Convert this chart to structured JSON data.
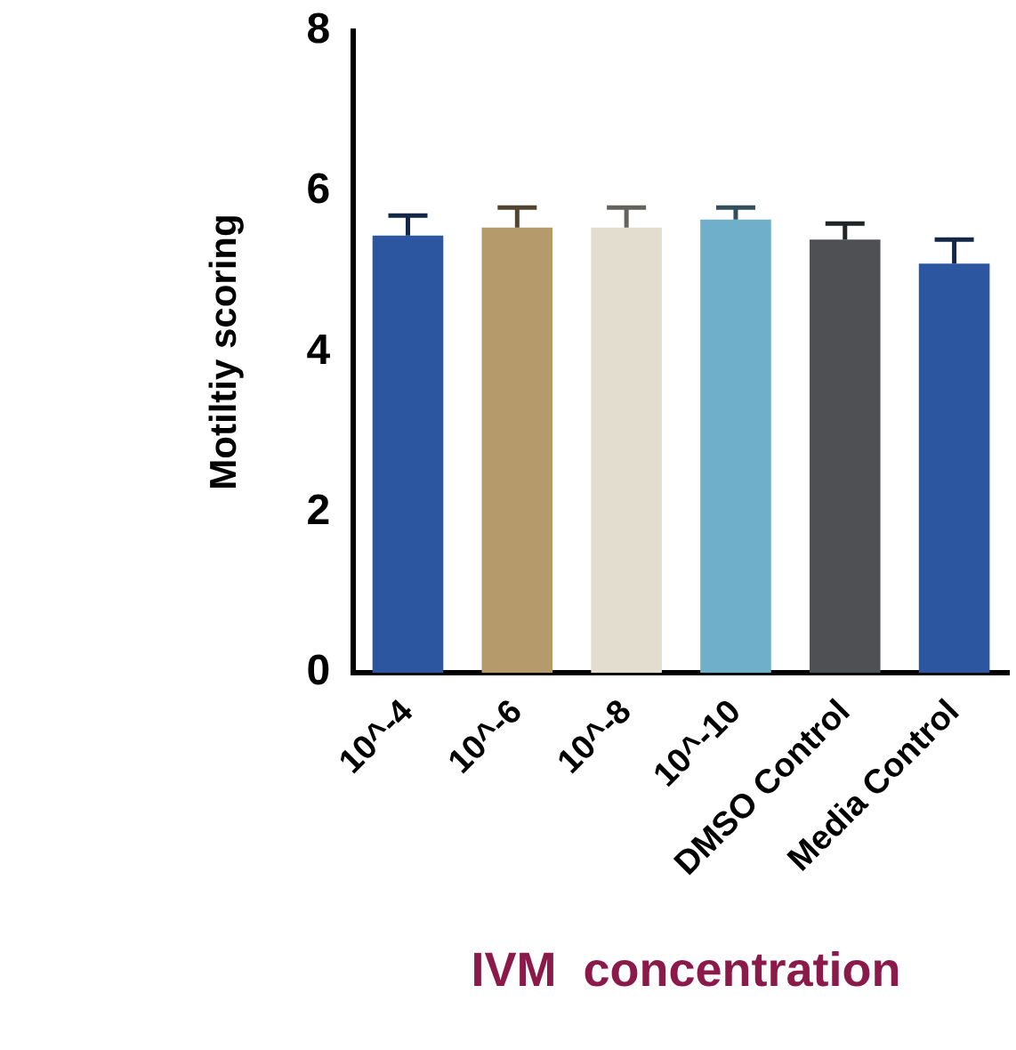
{
  "chart_data": {
    "type": "bar",
    "xlabel": "IVM  concentration",
    "ylabel": "Motiltiy scoring",
    "categories": [
      "10^-4",
      "10^-6",
      "10^-8",
      "10^-10",
      "DMSO Control",
      "Media Control"
    ],
    "values": [
      5.45,
      5.55,
      5.55,
      5.65,
      5.4,
      5.1
    ],
    "errors": [
      [
        5.45,
        5.7
      ],
      [
        5.55,
        5.8
      ],
      [
        5.55,
        5.8
      ],
      [
        5.65,
        5.8
      ],
      [
        5.4,
        5.6
      ],
      [
        5.1,
        5.4
      ]
    ],
    "colors": [
      "#2c57a0",
      "#b59a6c",
      "#e3ddd0",
      "#6fafc9",
      "#4e5054",
      "#2c57a0"
    ],
    "ylim": [
      0,
      8
    ],
    "yticks": [
      0,
      2,
      4,
      6,
      8
    ],
    "grid": false,
    "legend": false
  }
}
